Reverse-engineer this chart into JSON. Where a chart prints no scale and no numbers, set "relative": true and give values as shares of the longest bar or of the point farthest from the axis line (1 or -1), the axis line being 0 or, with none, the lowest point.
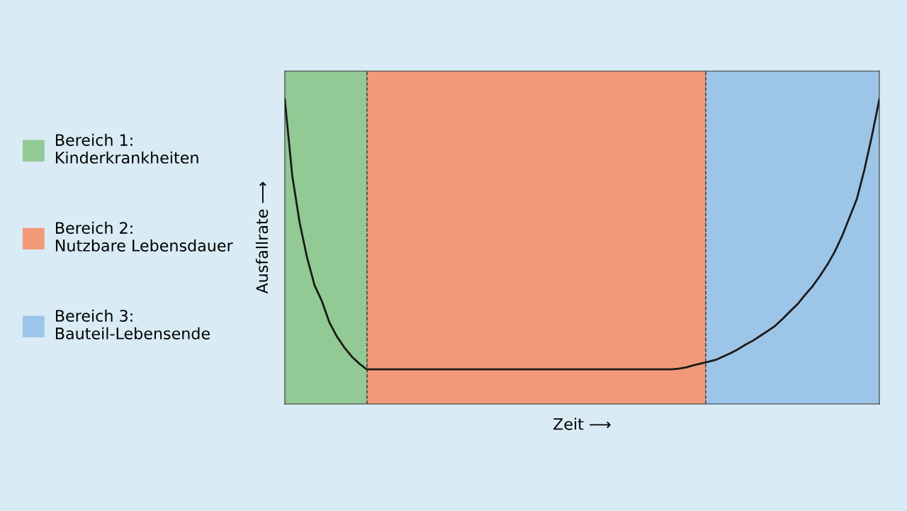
{
  "chart_data": {
    "type": "line",
    "relative": true,
    "xlabel": "Zeit ⟶",
    "ylabel": "Ausfallrate ⟶",
    "tick_labels": false,
    "marker": "none",
    "line_style": "solid",
    "categories": [
      null,
      null,
      null,
      null,
      null,
      null,
      null,
      null,
      null,
      null,
      null,
      null,
      null,
      null,
      null,
      null,
      null,
      null,
      null,
      null,
      null,
      null,
      null,
      null,
      null,
      null,
      null,
      null,
      null,
      null,
      null,
      null,
      null,
      null,
      null,
      null,
      null,
      null,
      null,
      null,
      null,
      null,
      null,
      null,
      null,
      null,
      null,
      null,
      null,
      null,
      null,
      null,
      null,
      null,
      null,
      null,
      null,
      null,
      null,
      null,
      null,
      null,
      null,
      null,
      null,
      null,
      null,
      null,
      null,
      null,
      null,
      null,
      null,
      null,
      null,
      null,
      null,
      null,
      null,
      null,
      null
    ],
    "series": [
      {
        "color": "#1a1a1a",
        "values": [
          1.0,
          0.75,
          0.595,
          0.48,
          0.39,
          0.337,
          0.268,
          0.222,
          0.186,
          0.156,
          0.133,
          0.114,
          0.114,
          0.114,
          0.114,
          0.114,
          0.114,
          0.114,
          0.114,
          0.114,
          0.114,
          0.114,
          0.114,
          0.114,
          0.114,
          0.114,
          0.114,
          0.114,
          0.114,
          0.114,
          0.114,
          0.114,
          0.114,
          0.114,
          0.114,
          0.114,
          0.114,
          0.114,
          0.114,
          0.114,
          0.114,
          0.114,
          0.114,
          0.114,
          0.114,
          0.114,
          0.114,
          0.114,
          0.114,
          0.114,
          0.114,
          0.114,
          0.114,
          0.116,
          0.12,
          0.127,
          0.133,
          0.139,
          0.145,
          0.156,
          0.167,
          0.18,
          0.195,
          0.208,
          0.224,
          0.24,
          0.257,
          0.28,
          0.304,
          0.328,
          0.358,
          0.386,
          0.42,
          0.457,
          0.5,
          0.552,
          0.613,
          0.675,
          0.77,
          0.88,
          1.0
        ]
      }
    ],
    "annotations": [
      "Bereich 1:\nKinderkrankheiten",
      "Bereich 2:\nNutzbare Lebensdauer",
      "Bereich 3:\nBauteil-Lebensende"
    ]
  }
}
